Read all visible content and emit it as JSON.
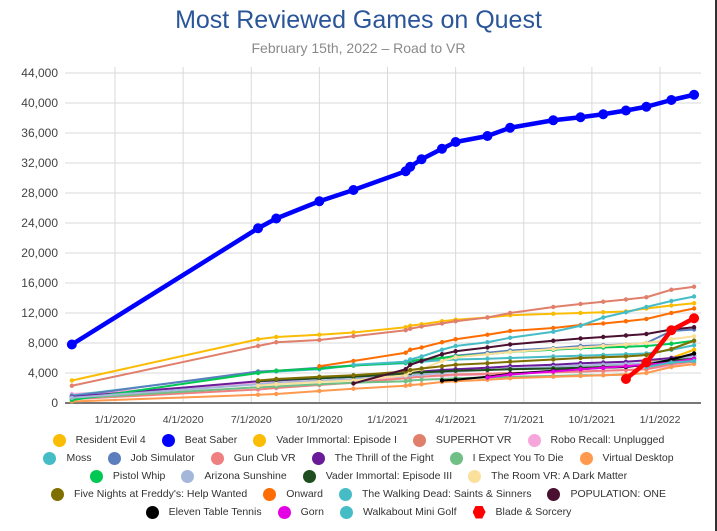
{
  "chart_data": {
    "type": "line",
    "title": "Most Reviewed Games on Quest",
    "subtitle": "February 15th, 2022 – Road to VR",
    "xlabel": "",
    "ylabel": "",
    "ylim": [
      0,
      44000
    ],
    "yticks": [
      "0",
      "4,000",
      "8,000",
      "12,000",
      "16,000",
      "20,000",
      "24,000",
      "28,000",
      "32,000",
      "36,000",
      "40,000",
      "44,000"
    ],
    "ytick_values": [
      0,
      4000,
      8000,
      12000,
      16000,
      20000,
      24000,
      28000,
      32000,
      36000,
      40000,
      44000
    ],
    "xticks": [
      "1/1/2020",
      "4/1/2020",
      "7/1/2020",
      "10/1/2020",
      "1/1/2021",
      "4/1/2021",
      "7/1/2021",
      "10/1/2021",
      "1/1/2022"
    ],
    "xtick_months": [
      0,
      3,
      6,
      9,
      12,
      15,
      18,
      21,
      24
    ],
    "xlim_months": [
      -2.3,
      26.5
    ],
    "grid": true,
    "legend_position": "bottom",
    "x_months": [
      -1.9,
      6.3,
      7.1,
      9.0,
      10.5,
      12.8,
      13.0,
      13.5,
      14.4,
      15.0,
      16.4,
      17.4,
      19.3,
      20.5,
      21.5,
      22.5,
      23.4,
      24.5,
      25.5
    ],
    "series": [
      {
        "name": "Resident Evil 4",
        "color": "#fbbc04",
        "width": 2,
        "values": [
          null,
          null,
          null,
          null,
          null,
          null,
          null,
          null,
          null,
          null,
          null,
          null,
          null,
          null,
          null,
          4900,
          5300,
          6000,
          7100
        ]
      },
      {
        "name": "Beat Saber",
        "color": "#0000ff",
        "width": 4.5,
        "values": [
          7800,
          23300,
          24600,
          26900,
          28400,
          30900,
          31500,
          32500,
          33900,
          34800,
          35600,
          36700,
          37700,
          38100,
          38500,
          39000,
          39500,
          40400,
          41100
        ]
      },
      {
        "name": "Vader Immortal: Episode I",
        "color": "#fbbc04",
        "width": 2,
        "values": [
          3000,
          8500,
          8800,
          9100,
          9400,
          10100,
          10300,
          10500,
          10900,
          11100,
          11400,
          11700,
          11900,
          12000,
          12100,
          12200,
          12600,
          13000,
          13300
        ]
      },
      {
        "name": "SUPERHOT VR",
        "color": "#e07f6b",
        "width": 2,
        "values": [
          2300,
          7600,
          8100,
          8400,
          8900,
          9700,
          9900,
          10200,
          10600,
          10900,
          11400,
          12000,
          12800,
          13200,
          13500,
          13800,
          14100,
          15100,
          15500
        ]
      },
      {
        "name": "Robo Recall: Unplugged",
        "color": "#f7a6db",
        "width": 2,
        "values": [
          1200,
          2600,
          2700,
          2900,
          3100,
          3300,
          3400,
          3500,
          3600,
          3700,
          3800,
          3900,
          4100,
          4200,
          4300,
          4400,
          4500,
          5000,
          5600
        ]
      },
      {
        "name": "Moss",
        "color": "#46bdc6",
        "width": 2,
        "values": [
          1000,
          4100,
          4200,
          4500,
          5000,
          5300,
          5400,
          5500,
          5700,
          5800,
          5900,
          6000,
          6200,
          6300,
          6400,
          6500,
          6600,
          7100,
          7700
        ]
      },
      {
        "name": "Job Simulator",
        "color": "#5b7fbd",
        "width": 2,
        "values": [
          900,
          4200,
          4300,
          4700,
          5000,
          5500,
          5600,
          5700,
          6000,
          6300,
          6700,
          7000,
          7300,
          7600,
          7700,
          7800,
          8000,
          9600,
          9800
        ]
      },
      {
        "name": "Gun Club VR",
        "color": "#f08080",
        "width": 2,
        "values": [
          500,
          1800,
          2000,
          2400,
          2700,
          3300,
          3400,
          3500,
          3700,
          3800,
          3900,
          4000,
          4100,
          4200,
          4300,
          4400,
          4500,
          5200,
          5500
        ]
      },
      {
        "name": "The Thrill of the Fight",
        "color": "#6a1b9a",
        "width": 2,
        "values": [
          800,
          2900,
          3000,
          3300,
          3500,
          4000,
          4100,
          4200,
          4400,
          4500,
          4700,
          4900,
          5100,
          5300,
          5400,
          5500,
          5700,
          6000,
          6300
        ]
      },
      {
        "name": "I Expect You To Die",
        "color": "#6fbf86",
        "width": 2,
        "values": [
          600,
          2100,
          2200,
          2500,
          2700,
          2900,
          3000,
          3100,
          3200,
          3300,
          3400,
          3500,
          3600,
          3700,
          3700,
          3800,
          null,
          null,
          null
        ]
      },
      {
        "name": "Virtual Desktop",
        "color": "#ff994d",
        "width": 2,
        "values": [
          200,
          1100,
          1200,
          1600,
          1900,
          2300,
          2400,
          2500,
          2800,
          2900,
          3100,
          3300,
          3500,
          3600,
          3700,
          3800,
          4000,
          4800,
          5200
        ]
      },
      {
        "name": "Pistol Whip",
        "color": "#00c853",
        "width": 2,
        "values": [
          400,
          4000,
          4300,
          4600,
          5000,
          5400,
          5600,
          5800,
          6000,
          6200,
          6500,
          6800,
          7100,
          7300,
          7400,
          7500,
          7600,
          7900,
          8300
        ]
      },
      {
        "name": "Arizona Sunshine",
        "color": "#a4b6da",
        "width": 2,
        "values": [
          700,
          2500,
          2700,
          3000,
          3200,
          3600,
          3700,
          3800,
          4000,
          4200,
          4400,
          4600,
          4800,
          5000,
          5100,
          5200,
          5300,
          5800,
          6200
        ]
      },
      {
        "name": "Vader Immortal: Episode III",
        "color": "#1e4d1e",
        "width": 2,
        "values": [
          null,
          2900,
          3100,
          3300,
          3500,
          3900,
          4000,
          4100,
          4200,
          4300,
          4400,
          4500,
          4600,
          4700,
          4800,
          4900,
          5000,
          5700,
          5900
        ]
      },
      {
        "name": "The Room VR: A Dark Matter",
        "color": "#fbe09b",
        "width": 2,
        "values": [
          null,
          2300,
          2500,
          2800,
          3000,
          3700,
          4200,
          4500,
          5600,
          6100,
          6500,
          6800,
          7200,
          7400,
          7600,
          7800,
          8000,
          8500,
          8900
        ]
      },
      {
        "name": "Five Nights at Freddy's: Help Wanted",
        "color": "#7f6f00",
        "width": 2,
        "values": [
          null,
          3000,
          3200,
          3500,
          3700,
          4200,
          4400,
          4600,
          4900,
          5100,
          5300,
          5500,
          5800,
          6000,
          6100,
          6200,
          6400,
          7200,
          8300
        ]
      },
      {
        "name": "Onward",
        "color": "#ff6d01",
        "width": 2,
        "values": [
          null,
          null,
          null,
          4900,
          5600,
          6700,
          7100,
          7400,
          8100,
          8500,
          9100,
          9600,
          10000,
          10400,
          10600,
          10900,
          11200,
          12000,
          12600
        ]
      },
      {
        "name": "The Walking Dead: Saints & Sinners",
        "color": "#46bdc6",
        "width": 2,
        "values": [
          null,
          null,
          null,
          null,
          5100,
          5500,
          5800,
          6200,
          7100,
          7600,
          8100,
          8700,
          9500,
          10300,
          11400,
          12100,
          12800,
          13600,
          14200
        ]
      },
      {
        "name": "POPULATION: ONE",
        "color": "#4a1030",
        "width": 2,
        "values": [
          null,
          null,
          null,
          null,
          2600,
          4500,
          5100,
          5600,
          6500,
          6900,
          7400,
          7800,
          8300,
          8600,
          8800,
          9000,
          9200,
          9800,
          10100
        ]
      },
      {
        "name": "Eleven Table Tennis",
        "color": "#000000",
        "width": 2,
        "values": [
          null,
          null,
          null,
          null,
          null,
          null,
          null,
          null,
          3000,
          3100,
          3500,
          3900,
          4300,
          4500,
          4700,
          4800,
          5100,
          5800,
          6600
        ]
      },
      {
        "name": "Gorn",
        "color": "#e400e4",
        "width": 2,
        "values": [
          null,
          null,
          null,
          null,
          null,
          null,
          null,
          null,
          null,
          null,
          3400,
          3800,
          4200,
          4500,
          4700,
          4900,
          5100,
          5400,
          5900
        ]
      },
      {
        "name": "Walkabout Mini Golf",
        "color": "#46bdc6",
        "width": 2,
        "values": [
          null,
          null,
          null,
          null,
          null,
          null,
          null,
          null,
          null,
          null,
          null,
          null,
          null,
          null,
          null,
          null,
          4800,
          5400,
          5600
        ]
      },
      {
        "name": "Blade & Sorcery",
        "color": "#ff0000",
        "width": 4.5,
        "values": [
          null,
          null,
          null,
          null,
          null,
          null,
          null,
          null,
          null,
          null,
          null,
          null,
          null,
          null,
          null,
          3200,
          5400,
          9700,
          11300
        ]
      }
    ]
  }
}
